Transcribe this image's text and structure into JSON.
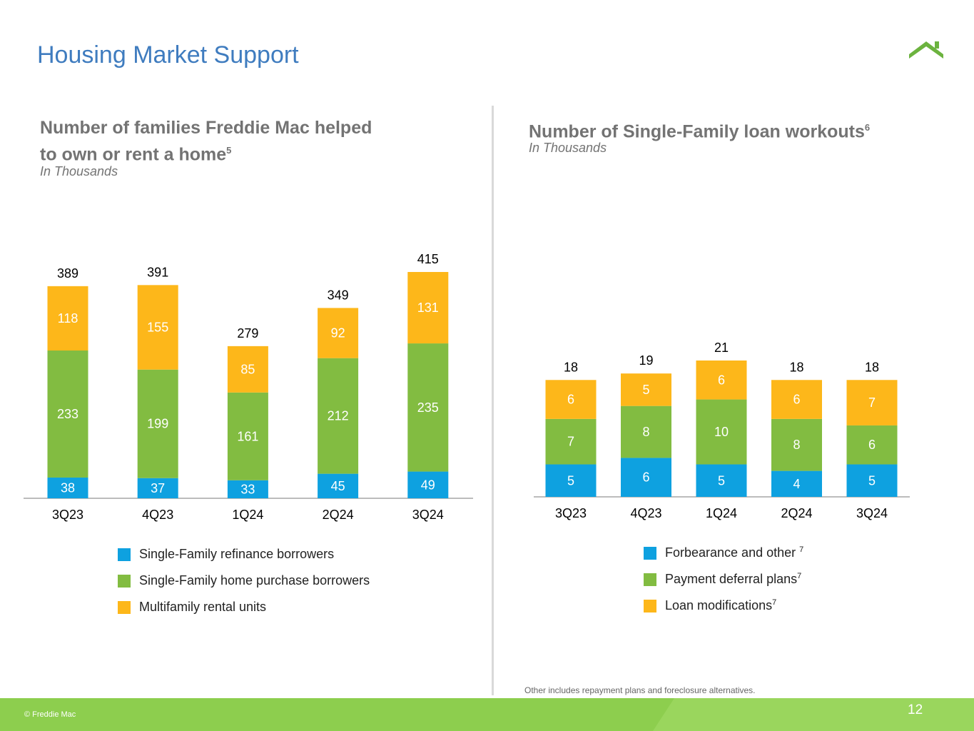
{
  "page": {
    "title": "Housing Market Support",
    "page_number": "12",
    "copyright": "© Freddie Mac"
  },
  "logo": {
    "icon": "house-roof-icon",
    "color": "#6cb33f"
  },
  "colors": {
    "blue": "#0ea1e0",
    "green": "#82bc41",
    "gold": "#fdb71a"
  },
  "left_panel": {
    "title_line1": "Number of families Freddie Mac helped",
    "title_line2": "to own or rent a home",
    "title_sup": "5",
    "subtitle": "In Thousands",
    "legend": [
      {
        "label": "Single-Family refinance borrowers",
        "sup": "",
        "color": "#0ea1e0"
      },
      {
        "label": "Single-Family home purchase borrowers",
        "sup": "",
        "color": "#82bc41"
      },
      {
        "label": "Multifamily rental units",
        "sup": "",
        "color": "#fdb71a"
      }
    ]
  },
  "right_panel": {
    "title": "Number of Single-Family loan workouts",
    "title_sup": "6",
    "subtitle": "In Thousands",
    "legend": [
      {
        "label": "Forbearance and other ",
        "sup": "7",
        "color": "#0ea1e0"
      },
      {
        "label": "Payment deferral plans",
        "sup": "7",
        "color": "#82bc41"
      },
      {
        "label": "Loan modifications",
        "sup": "7",
        "color": "#fdb71a"
      }
    ],
    "note": "Other includes repayment plans and foreclosure alternatives."
  },
  "chart_data": [
    {
      "type": "bar",
      "stacked": true,
      "title": "Number of families Freddie Mac helped to own or rent a home",
      "unit": "In Thousands",
      "categories": [
        "3Q23",
        "4Q23",
        "1Q24",
        "2Q24",
        "3Q24"
      ],
      "series": [
        {
          "name": "Single-Family refinance borrowers",
          "values": [
            38,
            37,
            33,
            45,
            49
          ],
          "color": "#0ea1e0"
        },
        {
          "name": "Single-Family home purchase borrowers",
          "values": [
            233,
            199,
            161,
            212,
            235
          ],
          "color": "#82bc41"
        },
        {
          "name": "Multifamily rental units",
          "values": [
            118,
            155,
            85,
            92,
            131
          ],
          "color": "#fdb71a"
        }
      ],
      "totals": [
        389,
        391,
        279,
        349,
        415
      ],
      "ylim": [
        0,
        415
      ]
    },
    {
      "type": "bar",
      "stacked": true,
      "title": "Number of Single-Family loan workouts",
      "unit": "In Thousands",
      "categories": [
        "3Q23",
        "4Q23",
        "1Q24",
        "2Q24",
        "3Q24"
      ],
      "series": [
        {
          "name": "Forbearance and other",
          "values": [
            5,
            6,
            5,
            4,
            5
          ],
          "color": "#0ea1e0"
        },
        {
          "name": "Payment deferral plans",
          "values": [
            7,
            8,
            10,
            8,
            6
          ],
          "color": "#82bc41"
        },
        {
          "name": "Loan modifications",
          "values": [
            6,
            5,
            6,
            6,
            7
          ],
          "color": "#fdb71a"
        }
      ],
      "totals": [
        18,
        19,
        21,
        18,
        18
      ],
      "ylim": [
        0,
        21
      ]
    }
  ]
}
